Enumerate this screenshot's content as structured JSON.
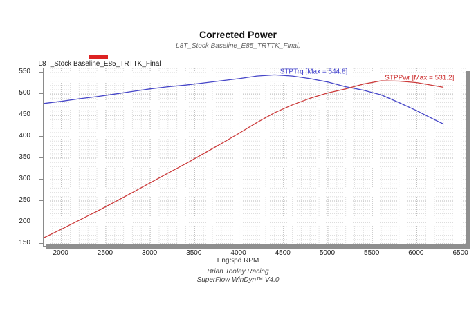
{
  "header": {
    "title": "Corrected Power",
    "subtitle": "L8T_Stock Baseline_E85_TRTTK_Final,"
  },
  "legend": {
    "label": "L8T_Stock Baseline_E85_TRTTK_Final",
    "swatch_color": "#dd2222"
  },
  "footer": {
    "line1": "Brian Tooley Racing",
    "line2": "SuperFlow WinDyn™ V4.0"
  },
  "chart_data": {
    "type": "line",
    "title": "Corrected Power",
    "subtitle": "L8T_Stock Baseline_E85_TRTTK_Final,",
    "xlabel": "EngSpd RPM",
    "ylabel": "",
    "xlim": [
      1800,
      6550
    ],
    "ylim": [
      145,
      560
    ],
    "x_ticks": [
      2000,
      2500,
      3000,
      3500,
      4000,
      4500,
      5000,
      5500,
      6000,
      6500
    ],
    "y_ticks": [
      150,
      200,
      250,
      300,
      350,
      400,
      450,
      500,
      550
    ],
    "grid": {
      "minor_x_step": 100,
      "minor_y_step": 10,
      "minor_color": "#dedede",
      "major_color": "#b9b9b9",
      "style": "dotted"
    },
    "legend_position": "top-left",
    "x": [
      1800,
      2000,
      2200,
      2400,
      2600,
      2800,
      3000,
      3200,
      3400,
      3600,
      3800,
      4000,
      4200,
      4400,
      4600,
      4800,
      5000,
      5200,
      5400,
      5600,
      5800,
      6000,
      6200,
      6300
    ],
    "series": [
      {
        "name": "STPTrq",
        "color": "#4646c8",
        "max": 544.8,
        "values": [
          478,
          483,
          489,
          494,
          500,
          506,
          512,
          517,
          521,
          526,
          531,
          536,
          542,
          544.8,
          542,
          536,
          528,
          517,
          509,
          498,
          480,
          461,
          440,
          430
        ]
      },
      {
        "name": "STPPwr",
        "color": "#cc3b3b",
        "max": 531.2,
        "values": [
          163.8,
          183.9,
          204.9,
          225.7,
          247.5,
          269.7,
          292.5,
          315.0,
          337.3,
          360.5,
          384.2,
          408.2,
          433.4,
          456.4,
          474.8,
          490.0,
          502.7,
          511.9,
          523.3,
          531.0,
          530.1,
          526.7,
          519.5,
          515.8
        ]
      }
    ],
    "annotations": [
      {
        "text": "STPTrq [Max = 544.8]",
        "color": "#3c3ccc",
        "x": 4460,
        "y": 552
      },
      {
        "text": "STPPwr [Max = 531.2]",
        "color": "#cc2a2a",
        "x": 5640,
        "y": 538
      }
    ]
  }
}
